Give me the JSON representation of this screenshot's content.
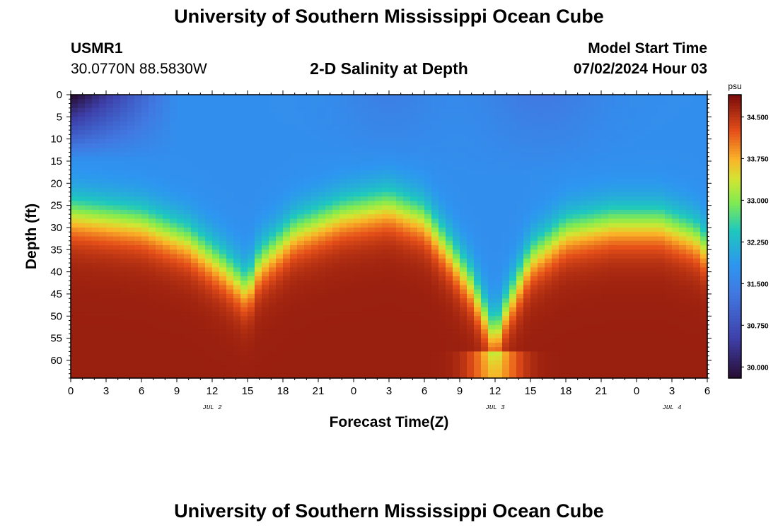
{
  "chart_data": {
    "type": "heatmap",
    "title": "University of Southern Mississippi Ocean Cube",
    "footer_title": "University of Southern Mississippi Ocean Cube",
    "station": "USMR1",
    "coordinates": "30.0770N  88.5830W",
    "subtitle": "2-D Salinity at Depth",
    "model_start_label": "Model Start Time",
    "model_start_value": "07/02/2024 Hour 03",
    "xlabel": "Forecast Time(Z)",
    "ylabel": "Depth (ft)",
    "x_range_hours": [
      0,
      54
    ],
    "y_range_ft": [
      0,
      64
    ],
    "x_ticks": [
      "0",
      "3",
      "6",
      "9",
      "12",
      "15",
      "18",
      "21",
      "0",
      "3",
      "6",
      "9",
      "12",
      "15",
      "18",
      "21",
      "0",
      "3",
      "6"
    ],
    "date_labels": [
      {
        "text": "JUL 2",
        "hour": 12
      },
      {
        "text": "JUL 3",
        "hour": 36
      },
      {
        "text": "JUL 4",
        "hour": 51
      }
    ],
    "y_ticks": [
      0,
      5,
      10,
      15,
      20,
      25,
      30,
      35,
      40,
      45,
      50,
      55,
      60
    ],
    "colorbar": {
      "unit": "psu",
      "min": 29.8,
      "max": 34.9,
      "ticks": [
        "30.000",
        "30.750",
        "31.500",
        "32.250",
        "33.000",
        "33.750",
        "34.500"
      ]
    },
    "halocline_depth_ft": [
      {
        "hour": 0,
        "depth": 27
      },
      {
        "hour": 6,
        "depth": 29
      },
      {
        "hour": 10,
        "depth": 33
      },
      {
        "hour": 13,
        "depth": 39
      },
      {
        "hour": 15,
        "depth": 44
      },
      {
        "hour": 16,
        "depth": 38
      },
      {
        "hour": 19,
        "depth": 31
      },
      {
        "hour": 23,
        "depth": 27
      },
      {
        "hour": 27,
        "depth": 25
      },
      {
        "hour": 30,
        "depth": 28
      },
      {
        "hour": 32,
        "depth": 35
      },
      {
        "hour": 34,
        "depth": 43
      },
      {
        "hour": 35,
        "depth": 49
      },
      {
        "hour": 36,
        "depth": 55
      },
      {
        "hour": 37,
        "depth": 48
      },
      {
        "hour": 39,
        "depth": 37
      },
      {
        "hour": 42,
        "depth": 31
      },
      {
        "hour": 46,
        "depth": 29
      },
      {
        "hour": 50,
        "depth": 29
      },
      {
        "hour": 53,
        "depth": 32
      },
      {
        "hour": 54,
        "depth": 35
      }
    ],
    "surface_fresh_patch": {
      "hour_end": 9,
      "depth_end_ft": 15,
      "min_psu": 29.9
    },
    "deep_salinity_psu": 34.7,
    "surface_salinity_psu": 31.7
  }
}
